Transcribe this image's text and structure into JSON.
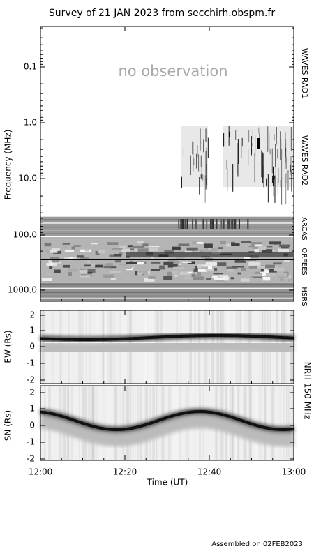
{
  "title": "Survey of 21 JAN 2023 from secchirh.obspm.fr",
  "spectrum": {
    "y_label": "Frequency (MHz)",
    "annotation": "no observation",
    "yticks": [
      "0.1",
      "1.0",
      "10.0",
      "100.0",
      "1000.0"
    ],
    "instruments": [
      "WAVES RAD1",
      "WAVES RAD2",
      "ARCAS",
      "ORFEES",
      "HSRS"
    ]
  },
  "ew": {
    "y_label": "EW (Rs)",
    "yticks": [
      "2",
      "1",
      "0",
      "-1",
      "-2"
    ]
  },
  "sn": {
    "y_label": "SN (Rs)",
    "yticks": [
      "2",
      "1",
      "0",
      "-1",
      "-2"
    ]
  },
  "nrh_label": "NRH 150 MHz",
  "x_axis": {
    "label": "Time (UT)",
    "ticks": [
      "12:00",
      "12:20",
      "12:40",
      "13:00"
    ]
  },
  "footer": "Assembled on 02FEB2023"
}
